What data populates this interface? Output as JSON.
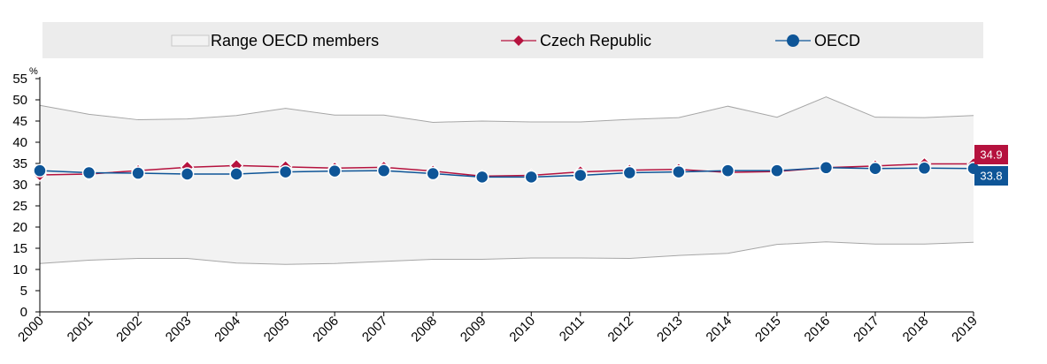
{
  "chart_data": {
    "type": "line",
    "unit_label": "%",
    "ylim": [
      0,
      55
    ],
    "yticks": [
      0,
      5,
      10,
      15,
      20,
      25,
      30,
      35,
      40,
      45,
      50,
      55
    ],
    "categories": [
      "2000",
      "2001",
      "2002",
      "2003",
      "2004",
      "2005",
      "2006",
      "2007",
      "2008",
      "2009",
      "2010",
      "2011",
      "2012",
      "2013",
      "2014",
      "2015",
      "2016",
      "2017",
      "2018",
      "2019"
    ],
    "range": {
      "name": "Range OECD members",
      "max": [
        48.7,
        46.6,
        45.3,
        45.5,
        46.3,
        48.0,
        46.4,
        46.4,
        44.7,
        45.0,
        44.8,
        44.8,
        45.4,
        45.8,
        48.5,
        45.9,
        50.7,
        45.9,
        45.8,
        46.3
      ],
      "min": [
        11.4,
        12.2,
        12.6,
        12.6,
        11.5,
        11.2,
        11.4,
        11.9,
        12.4,
        12.4,
        12.7,
        12.7,
        12.6,
        13.3,
        13.8,
        15.9,
        16.5,
        16.0,
        16.0,
        16.4
      ],
      "color": "#f2f2f2",
      "edge_color": "#a6a6a6"
    },
    "series": [
      {
        "name": "Czech Republic",
        "color": "#b5123e",
        "marker": "diamond",
        "values": [
          32.3,
          32.5,
          33.3,
          34.1,
          34.5,
          34.2,
          33.9,
          34.1,
          33.2,
          32.0,
          32.2,
          33.0,
          33.4,
          33.6,
          32.9,
          33.1,
          34.0,
          34.4,
          34.9,
          34.9
        ],
        "end_label": "34.9"
      },
      {
        "name": "OECD",
        "color": "#0e5597",
        "marker": "circle",
        "values": [
          33.3,
          32.8,
          32.7,
          32.5,
          32.5,
          33.0,
          33.2,
          33.3,
          32.6,
          31.8,
          31.8,
          32.2,
          32.8,
          33.0,
          33.3,
          33.3,
          34.0,
          33.8,
          33.9,
          33.8
        ],
        "end_label": "33.8"
      }
    ],
    "grid": false,
    "legend_position": "top"
  }
}
